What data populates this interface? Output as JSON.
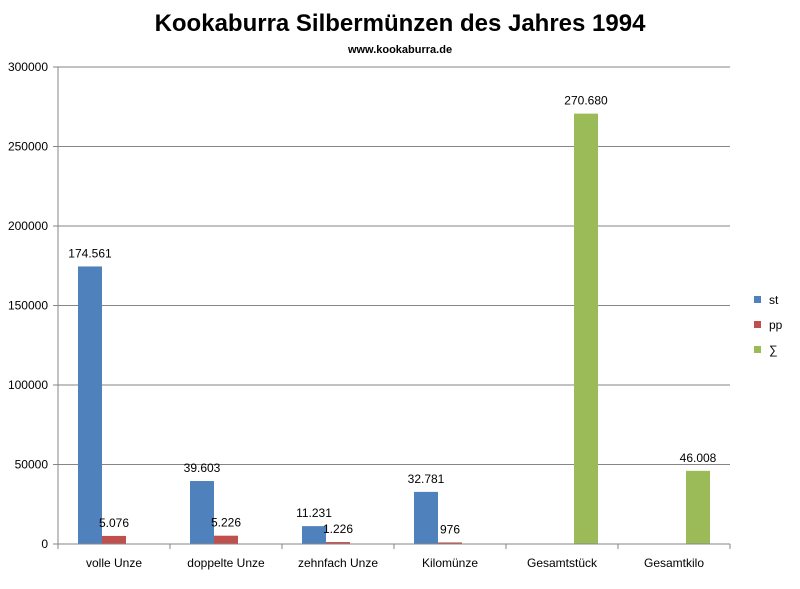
{
  "chart_data": {
    "type": "bar",
    "title": "Kookaburra Silbermünzen des Jahres 1994",
    "subtitle": "www.kookaburra.de",
    "categories": [
      "volle Unze",
      "doppelte Unze",
      "zehnfach Unze",
      "Kilomünze",
      "Gesamtstück",
      "Gesamtkilo"
    ],
    "series": [
      {
        "name": "st",
        "color": "#4F81BD",
        "values": [
          174561,
          39603,
          11231,
          32781,
          null,
          null
        ],
        "labels": [
          "174.561",
          "39.603",
          "11.231",
          "32.781",
          null,
          null
        ]
      },
      {
        "name": "pp",
        "color": "#C0504D",
        "values": [
          5076,
          5226,
          1226,
          976,
          null,
          null
        ],
        "labels": [
          "5.076",
          "5.226",
          "1.226",
          "976",
          null,
          null
        ]
      },
      {
        "name": "∑",
        "color": "#9BBB59",
        "values": [
          null,
          null,
          null,
          null,
          270680,
          46008
        ],
        "labels": [
          null,
          null,
          null,
          null,
          "270.680",
          "46.008"
        ]
      }
    ],
    "ylim": [
      0,
      300000
    ],
    "yticks": [
      0,
      50000,
      100000,
      150000,
      200000,
      250000,
      300000
    ],
    "ytick_labels": [
      "0",
      "50000",
      "100000",
      "150000",
      "200000",
      "250000",
      "300000"
    ],
    "grid": true,
    "legend": "right"
  }
}
